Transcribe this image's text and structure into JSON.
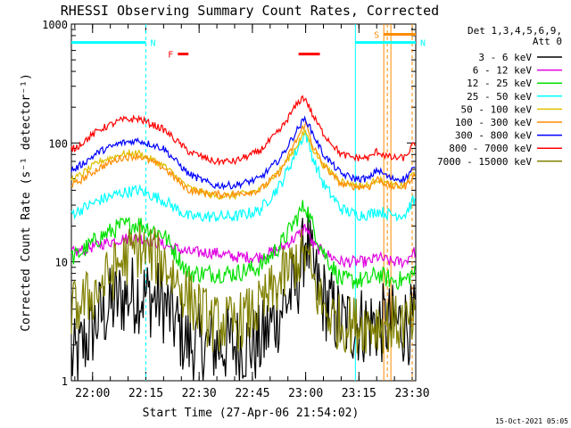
{
  "chart_data": {
    "type": "line",
    "title": "RHESSI Observing Summary Count Rates, Corrected",
    "xlabel": "Start Time (27-Apr-06 21:54:02)",
    "ylabel": "Corrected Count Rate (s⁻¹ detector⁻¹)",
    "y_scale": "log",
    "ylim": [
      1,
      1000
    ],
    "y_ticks": [
      {
        "value": 1,
        "label": "1"
      },
      {
        "value": 10,
        "label": "10"
      },
      {
        "value": 100,
        "label": "100"
      },
      {
        "value": 1000,
        "label": "1000"
      }
    ],
    "xlim": [
      "21:54:02",
      "23:31:00"
    ],
    "x_ticks": [
      {
        "time": "22:00",
        "label": "22:00"
      },
      {
        "time": "22:15",
        "label": "22:15"
      },
      {
        "time": "22:30",
        "label": "22:30"
      },
      {
        "time": "22:45",
        "label": "22:45"
      },
      {
        "time": "23:00",
        "label": "23:00"
      },
      {
        "time": "23:15",
        "label": "23:15"
      },
      {
        "time": "23:30",
        "label": "23:30"
      }
    ],
    "grid": false,
    "legend_title": [
      "Det 1,3,4,5,6,9,",
      "Att 0"
    ],
    "legend_placement": "right",
    "footer": "15-Oct-2021 05:05",
    "x": [
      "21:55",
      "22:02",
      "22:08",
      "22:13",
      "22:20",
      "22:27",
      "22:34",
      "22:40",
      "22:47",
      "22:53",
      "22:57",
      "22:59",
      "23:00",
      "23:02",
      "23:05",
      "23:10",
      "23:14",
      "23:18",
      "23:20",
      "23:24",
      "23:28",
      "23:30"
    ],
    "series": [
      {
        "name": "3 - 6 keV",
        "color": "#000000",
        "values": [
          1.5,
          3.5,
          5,
          5.5,
          4.5,
          2,
          2,
          2,
          2,
          4,
          6,
          10,
          18,
          8,
          5,
          3,
          3,
          3,
          3,
          3,
          3,
          3
        ]
      },
      {
        "name": "6 - 12 keV",
        "color": "#e000e0",
        "values": [
          12,
          14,
          15.5,
          16,
          14,
          12,
          12,
          11,
          11,
          13,
          16,
          18,
          20,
          14,
          12,
          10,
          10,
          10,
          11,
          10,
          10,
          12
        ]
      },
      {
        "name": "12 - 25 keV",
        "color": "#00e000",
        "values": [
          11,
          16,
          20,
          21,
          17,
          8,
          8,
          8,
          9,
          14,
          22,
          28,
          30,
          20,
          12,
          7,
          7,
          7,
          8,
          7,
          7,
          8
        ]
      },
      {
        "name": "25 - 50 keV",
        "color": "#00ffff",
        "values": [
          26,
          33,
          38,
          40,
          33,
          24,
          24,
          24,
          27,
          45,
          80,
          110,
          120,
          75,
          45,
          28,
          25,
          25,
          27,
          25,
          25,
          32
        ]
      },
      {
        "name": "50 - 100 keV",
        "color": "#e0c000",
        "values": [
          50,
          70,
          80,
          82,
          65,
          42,
          36,
          36,
          40,
          60,
          90,
          115,
          125,
          90,
          65,
          48,
          44,
          44,
          50,
          44,
          44,
          55
        ]
      },
      {
        "name": "100 - 300 keV",
        "color": "#ff8c00",
        "values": [
          45,
          62,
          75,
          78,
          62,
          40,
          37,
          37,
          40,
          58,
          100,
          130,
          150,
          95,
          65,
          45,
          43,
          43,
          50,
          43,
          43,
          52
        ]
      },
      {
        "name": "300 - 800 keV",
        "color": "#0000ff",
        "values": [
          60,
          85,
          100,
          105,
          90,
          55,
          44,
          44,
          50,
          75,
          120,
          150,
          160,
          120,
          80,
          55,
          50,
          50,
          60,
          50,
          50,
          60
        ]
      },
      {
        "name": "800 - 7000 keV",
        "color": "#ff0000",
        "values": [
          90,
          130,
          155,
          160,
          130,
          85,
          70,
          70,
          85,
          130,
          200,
          240,
          235,
          170,
          120,
          80,
          75,
          75,
          85,
          75,
          75,
          95
        ]
      },
      {
        "name": "7000 - 15000 keV",
        "color": "#808000",
        "values": [
          4,
          6,
          10,
          13,
          10,
          5,
          3,
          3,
          4,
          7,
          10,
          11,
          12,
          7,
          4,
          3,
          3,
          3,
          3,
          3,
          3,
          3
        ]
      }
    ],
    "annotations": [
      {
        "label": "N",
        "color": "#00ffff",
        "type": "night",
        "x_start": "21:54",
        "x_end": "22:15",
        "y": 700
      },
      {
        "label": "N",
        "color": "#00ffff",
        "type": "night",
        "x_start": "23:14",
        "x_end": "23:31",
        "y": 700
      },
      {
        "label": "F",
        "color": "#ff0000",
        "type": "flare",
        "x_start": "22:24",
        "x_end": "22:27",
        "y": 560
      },
      {
        "label": "",
        "color": "#ff0000",
        "type": "flare",
        "x_start": "22:58",
        "x_end": "23:04",
        "y": 560
      },
      {
        "label": "S",
        "color": "#ff8c00",
        "type": "saa",
        "x_start": "23:22",
        "x_end": "23:31",
        "y": 820
      }
    ],
    "vertical_markers": [
      {
        "time": "22:15",
        "color": "#00ffff",
        "style": "dashed"
      },
      {
        "time": "23:14",
        "color": "#00ffff",
        "style": "solid"
      },
      {
        "time": "23:22",
        "color": "#ff8c00",
        "style": "solid"
      },
      {
        "time": "23:23",
        "color": "#ff8c00",
        "style": "dashed"
      },
      {
        "time": "23:24",
        "color": "#ff8c00",
        "style": "solid"
      },
      {
        "time": "23:30",
        "color": "#ff8c00",
        "style": "dashed"
      }
    ]
  }
}
